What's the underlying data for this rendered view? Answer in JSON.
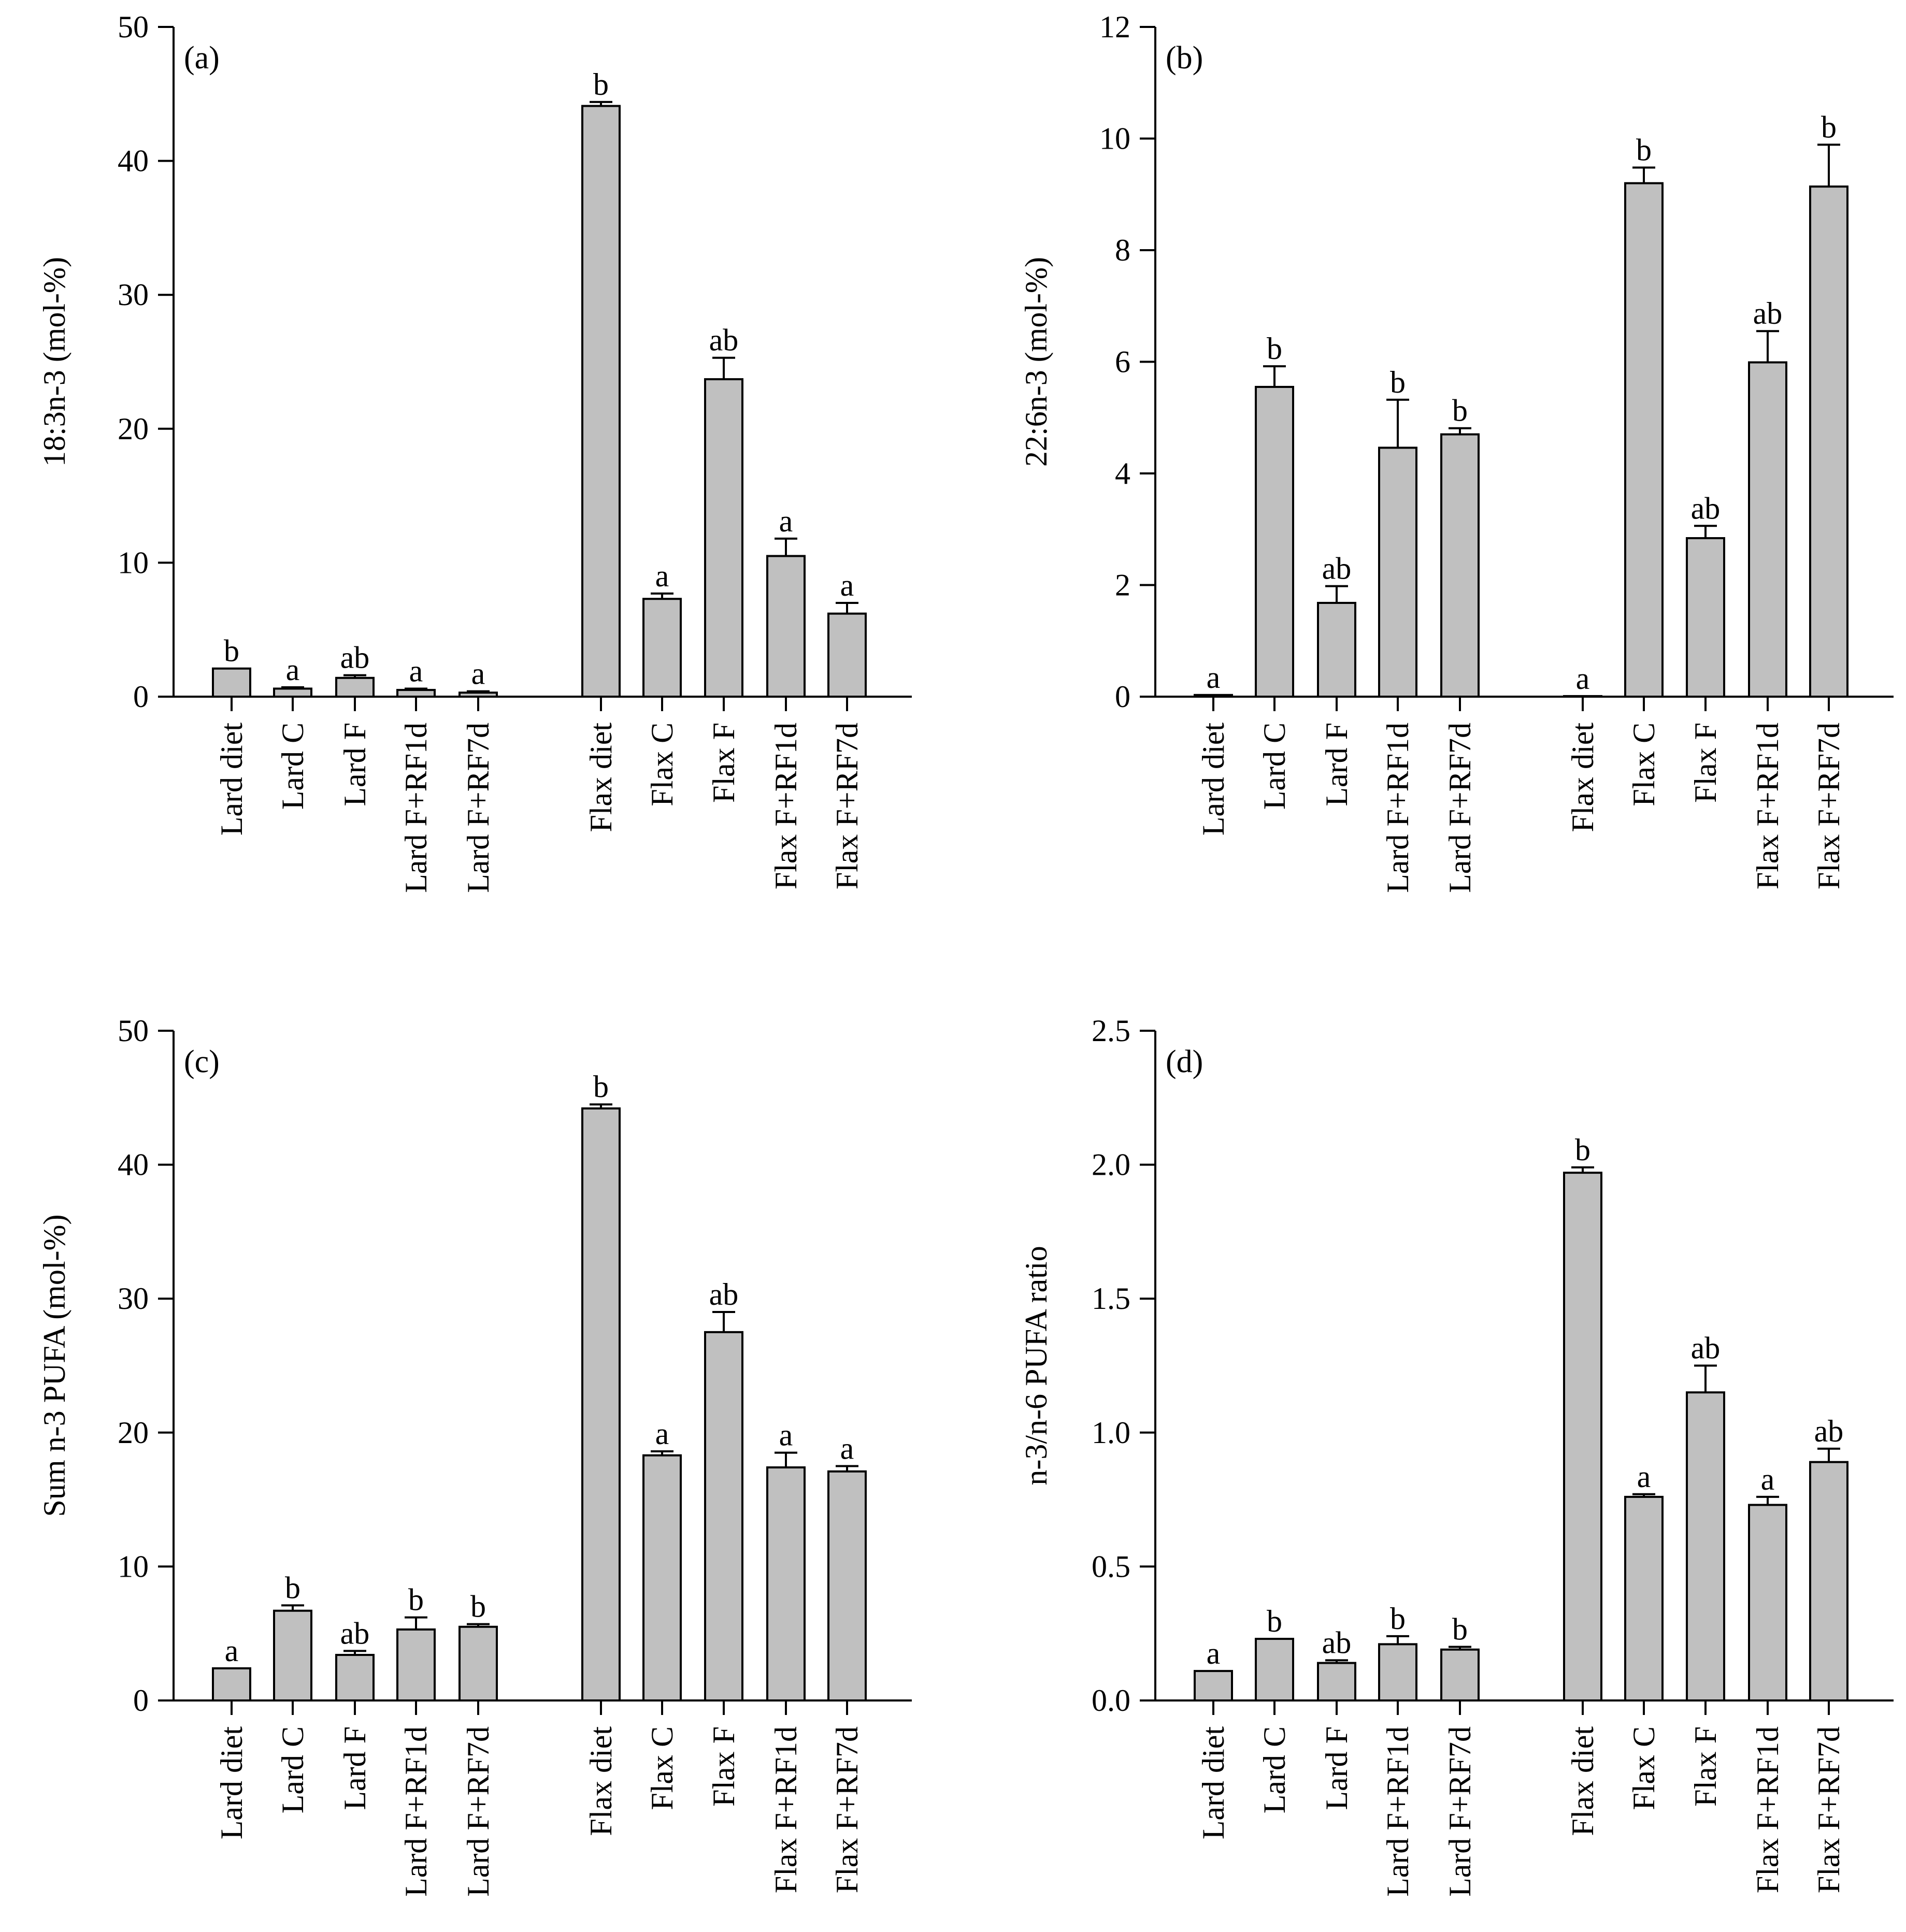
{
  "figure": {
    "categories": [
      "Lard diet",
      "Lard C",
      "Lard F",
      "Lard F+RF1d",
      "Lard F+RF7d",
      "Flax diet",
      "Flax C",
      "Flax F",
      "Flax F+RF1d",
      "Flax F+RF7d"
    ],
    "bar_color": "#c0c0c0",
    "axis_color": "#000000"
  },
  "chart_data": [
    {
      "type": "bar",
      "panel_label": "(a)",
      "ylabel": "18:3n-3 (mol-%)",
      "ylim": [
        0,
        50
      ],
      "yticks": [
        0,
        10,
        20,
        30,
        40,
        50
      ],
      "ytick_labels": [
        "0",
        "10",
        "20",
        "30",
        "40",
        "50"
      ],
      "categories": [
        "Lard diet",
        "Lard C",
        "Lard F",
        "Lard F+RF1d",
        "Lard F+RF7d",
        "Flax diet",
        "Flax C",
        "Flax F",
        "Flax F+RF1d",
        "Flax F+RF7d"
      ],
      "values": [
        2.1,
        0.6,
        1.4,
        0.5,
        0.3,
        44.1,
        7.3,
        23.7,
        10.5,
        6.2
      ],
      "errors": [
        0,
        0.1,
        0.2,
        0.1,
        0.1,
        0.3,
        0.4,
        1.6,
        1.3,
        0.8
      ],
      "letters": [
        "b",
        "a",
        "ab",
        "a",
        "a",
        "b",
        "a",
        "ab",
        "a",
        "a"
      ]
    },
    {
      "type": "bar",
      "panel_label": "(b)",
      "ylabel": "22:6n-3 (mol-%)",
      "ylim": [
        0,
        12
      ],
      "yticks": [
        0,
        2,
        4,
        6,
        8,
        10,
        12
      ],
      "ytick_labels": [
        "0",
        "2",
        "4",
        "6",
        "8",
        "10",
        "12"
      ],
      "categories": [
        "Lard diet",
        "Lard C",
        "Lard F",
        "Lard F+RF1d",
        "Lard F+RF7d",
        "Flax diet",
        "Flax C",
        "Flax F",
        "Flax F+RF1d",
        "Flax F+RF7d"
      ],
      "values": [
        0.03,
        5.55,
        1.68,
        4.46,
        4.7,
        0.01,
        9.2,
        2.84,
        5.99,
        9.14
      ],
      "errors": [
        0,
        0.37,
        0.3,
        0.86,
        0.11,
        0,
        0.28,
        0.22,
        0.56,
        0.75
      ],
      "letters": [
        "a",
        "b",
        "ab",
        "b",
        "b",
        "a",
        "b",
        "ab",
        "ab",
        "b"
      ]
    },
    {
      "type": "bar",
      "panel_label": "(c)",
      "ylabel": "Sum n-3 PUFA (mol-%)",
      "ylim": [
        0,
        50
      ],
      "yticks": [
        0,
        10,
        20,
        30,
        40,
        50
      ],
      "ytick_labels": [
        "0",
        "10",
        "20",
        "30",
        "40",
        "50"
      ],
      "categories": [
        "Lard diet",
        "Lard C",
        "Lard F",
        "Lard F+RF1d",
        "Lard F+RF7d",
        "Flax diet",
        "Flax C",
        "Flax F",
        "Flax F+RF1d",
        "Flax F+RF7d"
      ],
      "values": [
        2.4,
        6.7,
        3.4,
        5.3,
        5.5,
        44.2,
        18.3,
        27.5,
        17.4,
        17.1
      ],
      "errors": [
        0,
        0.4,
        0.3,
        0.9,
        0.2,
        0.3,
        0.3,
        1.5,
        1.1,
        0.4
      ],
      "letters": [
        "a",
        "b",
        "ab",
        "b",
        "b",
        "b",
        "a",
        "ab",
        "a",
        "a"
      ]
    },
    {
      "type": "bar",
      "panel_label": "(d)",
      "ylabel": "n-3/n-6 PUFA ratio",
      "ylim": [
        0,
        2.5
      ],
      "yticks": [
        0,
        0.5,
        1.0,
        1.5,
        2.0,
        2.5
      ],
      "ytick_labels": [
        "0.0",
        "0.5",
        "1.0",
        "1.5",
        "2.0",
        "2.5"
      ],
      "categories": [
        "Lard diet",
        "Lard C",
        "Lard F",
        "Lard F+RF1d",
        "Lard F+RF7d",
        "Flax diet",
        "Flax C",
        "Flax F",
        "Flax F+RF1d",
        "Flax F+RF7d"
      ],
      "values": [
        0.11,
        0.23,
        0.14,
        0.21,
        0.19,
        1.97,
        0.76,
        1.15,
        0.73,
        0.89
      ],
      "errors": [
        0,
        0,
        0.01,
        0.03,
        0.01,
        0.02,
        0.01,
        0.1,
        0.03,
        0.05
      ],
      "letters": [
        "a",
        "b",
        "ab",
        "b",
        "b",
        "b",
        "a",
        "ab",
        "a",
        "ab"
      ]
    }
  ]
}
